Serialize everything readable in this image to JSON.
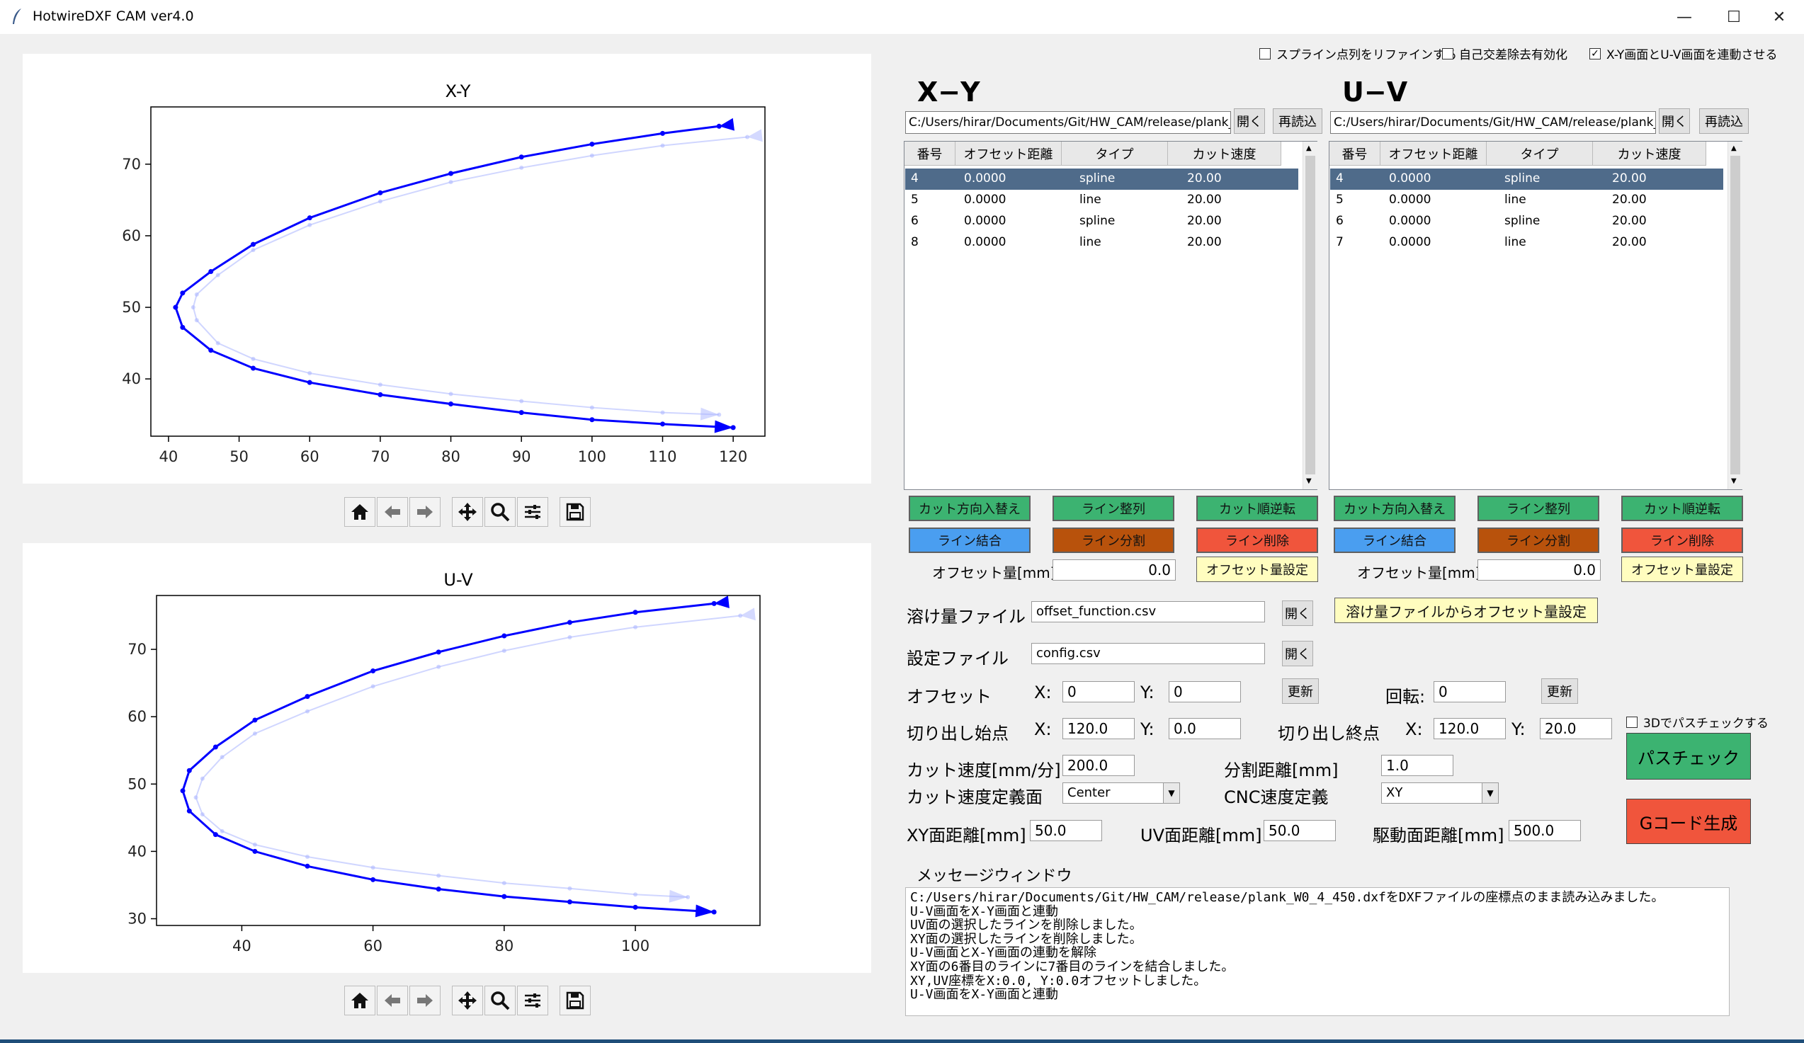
{
  "window": {
    "title": "HotwireDXF CAM ver4.0",
    "minimize": "—",
    "maximize": "☐",
    "close": "✕"
  },
  "options": [
    {
      "label": "スプライン点列をリファインする",
      "checked": false
    },
    {
      "label": "自己交差除去有効化",
      "checked": false
    },
    {
      "label": "X-Y画面とU-V画面を連動させる",
      "checked": true
    }
  ],
  "plots": {
    "xy": {
      "title": "X-Y"
    },
    "uv": {
      "title": "U-V"
    }
  },
  "chart_data": [
    {
      "type": "line",
      "title": "X-Y",
      "xlim": [
        37.5,
        124.5
      ],
      "ylim": [
        32,
        78
      ],
      "xticks": [
        40,
        50,
        60,
        70,
        80,
        90,
        100,
        110,
        120
      ],
      "yticks": [
        40,
        50,
        60,
        70
      ],
      "series": [
        {
          "color": "#0000ff",
          "x": [
            118,
            110,
            100,
            90,
            80,
            70,
            60,
            52,
            46,
            42,
            41,
            42,
            46,
            52,
            60,
            70,
            80,
            90,
            100,
            110,
            120
          ],
          "y": [
            75.3,
            74.3,
            72.8,
            71.0,
            68.7,
            66.0,
            62.5,
            58.8,
            55.0,
            52.0,
            50.0,
            47.2,
            44.0,
            41.5,
            39.5,
            37.8,
            36.5,
            35.3,
            34.3,
            33.7,
            33.2
          ]
        },
        {
          "color": "#aab4ff",
          "x": [
            122,
            110,
            100,
            90,
            80,
            70,
            60,
            52,
            47,
            44,
            43.5,
            44,
            47,
            52,
            60,
            70,
            80,
            90,
            100,
            110,
            118
          ],
          "y": [
            73.8,
            72.6,
            71.2,
            69.5,
            67.5,
            64.8,
            61.5,
            58.0,
            54.5,
            51.8,
            50.0,
            48.2,
            45.0,
            42.8,
            40.8,
            39.2,
            37.9,
            36.9,
            36.0,
            35.3,
            35.0
          ]
        }
      ]
    },
    {
      "type": "line",
      "title": "U-V",
      "xlim": [
        27,
        119
      ],
      "ylim": [
        29,
        78
      ],
      "xticks": [
        40,
        60,
        80,
        100
      ],
      "yticks": [
        30,
        40,
        50,
        60,
        70
      ],
      "series": [
        {
          "color": "#0000ff",
          "x": [
            112,
            100,
            90,
            80,
            70,
            60,
            50,
            42,
            36,
            32,
            31,
            32,
            36,
            42,
            50,
            60,
            70,
            80,
            90,
            100,
            112
          ],
          "y": [
            76.8,
            75.5,
            74.0,
            72.0,
            69.6,
            66.8,
            63.0,
            59.5,
            55.5,
            52.0,
            49.0,
            46.0,
            42.5,
            40.0,
            37.8,
            35.8,
            34.4,
            33.3,
            32.5,
            31.7,
            31.0
          ]
        },
        {
          "color": "#aab4ff",
          "x": [
            116,
            100,
            90,
            80,
            70,
            60,
            50,
            42,
            37,
            34,
            33,
            34,
            37,
            42,
            50,
            60,
            70,
            80,
            90,
            100,
            108
          ],
          "y": [
            75.0,
            73.3,
            71.8,
            69.8,
            67.4,
            64.5,
            60.8,
            57.5,
            54.0,
            50.8,
            48.0,
            45.5,
            43.0,
            41.0,
            39.2,
            37.6,
            36.4,
            35.3,
            34.5,
            33.6,
            33.2
          ]
        }
      ]
    }
  ],
  "xy": {
    "header": "X−Y",
    "path": "C:/Users/hirar/Documents/Git/HW_CAM/release/plank_W",
    "open": "開く",
    "reload": "再読込",
    "columns": [
      "番号",
      "オフセット距離",
      "タイプ",
      "カット速度"
    ],
    "rows": [
      [
        "4",
        "0.0000",
        "spline",
        "20.00"
      ],
      [
        "5",
        "0.0000",
        "line",
        "20.00"
      ],
      [
        "6",
        "0.0000",
        "spline",
        "20.00"
      ],
      [
        "8",
        "0.0000",
        "line",
        "20.00"
      ]
    ],
    "btn_swap_dir": "カット方向入替え",
    "btn_align": "ライン整列",
    "btn_reverse": "カット順逆転",
    "btn_merge": "ライン結合",
    "btn_split": "ライン分割",
    "btn_delete": "ライン削除",
    "offset_label": "オフセット量[mm]",
    "offset_value": "0.0",
    "offset_set": "オフセット量設定"
  },
  "uv": {
    "header": "U−V",
    "path": "C:/Users/hirar/Documents/Git/HW_CAM/release/plank_W",
    "open": "開く",
    "reload": "再読込",
    "columns": [
      "番号",
      "オフセット距離",
      "タイプ",
      "カット速度"
    ],
    "rows": [
      [
        "4",
        "0.0000",
        "spline",
        "20.00"
      ],
      [
        "5",
        "0.0000",
        "line",
        "20.00"
      ],
      [
        "6",
        "0.0000",
        "spline",
        "20.00"
      ],
      [
        "7",
        "0.0000",
        "line",
        "20.00"
      ]
    ],
    "btn_swap_dir": "カット方向入替え",
    "btn_align": "ライン整列",
    "btn_reverse": "カット順逆転",
    "btn_merge": "ライン結合",
    "btn_split": "ライン分割",
    "btn_delete": "ライン削除",
    "offset_label": "オフセット量[mm]",
    "offset_value": "0.0",
    "offset_set": "オフセット量設定"
  },
  "settings": {
    "melt_label": "溶け量ファイル",
    "melt_value": "offset_function.csv",
    "melt_open": "開く",
    "melt_apply": "溶け量ファイルからオフセット量設定",
    "config_label": "設定ファイル",
    "config_value": "config.csv",
    "config_open": "開く",
    "offset_label": "オフセット",
    "x_label": "X:",
    "y_label": "Y:",
    "offset_x": "0",
    "offset_y": "0",
    "offset_update": "更新",
    "rotate_label": "回転:",
    "rotate_value": "0",
    "rotate_update": "更新",
    "cut_start_label": "切り出し始点",
    "cut_start_x": "120.0",
    "cut_start_y": "0.0",
    "cut_end_label": "切り出し終点",
    "cut_end_x": "120.0",
    "cut_end_y": "20.0",
    "speed_label": "カット速度[mm/分]",
    "speed_value": "200.0",
    "split_label": "分割距離[mm]",
    "split_value": "1.0",
    "speed_plane_label": "カット速度定義面",
    "speed_plane_value": "Center",
    "cnc_label": "CNC速度定義",
    "cnc_value": "XY",
    "xy_dist_label": "XY面距離[mm]",
    "xy_dist_value": "50.0",
    "uv_dist_label": "UV面距離[mm]",
    "uv_dist_value": "50.0",
    "drive_dist_label": "駆動面距離[mm]",
    "drive_dist_value": "500.0",
    "check3d_label": "3Dでパスチェックする",
    "pathcheck": "パスチェック",
    "gcode": "Gコード生成",
    "colors": {
      "green": "#3cb371",
      "orange": "#b8520c",
      "red": "#f0553c",
      "blue": "#4a9ef0",
      "yellow": "#fffdbf"
    }
  },
  "messages": {
    "title": "メッセージウィンドウ",
    "text": "C:/Users/hirar/Documents/Git/HW_CAM/release/plank_W0_4_450.dxfをDXFファイルの座標点のまま読み込みました。\nU-V画面をX-Y画面と連動\nUV面の選択したラインを削除しました。\nXY面の選択したラインを削除しました。\nU-V画面とX-Y画面の連動を解除\nXY面の6番目のラインに7番目のラインを結合しました。\nXY,UV座標をX:0.0, Y:0.0オフセットしました。\nU-V画面をX-Y画面と連動"
  }
}
